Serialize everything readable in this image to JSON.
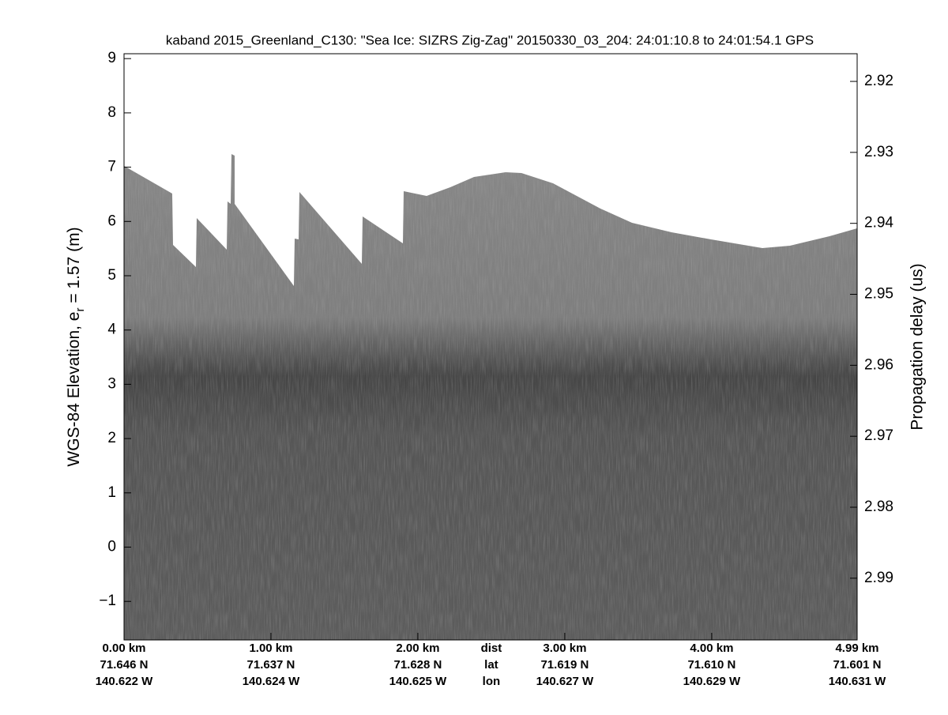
{
  "chart_data": {
    "type": "echogram",
    "title": "kaband 2015_Greenland_C130: \"Sea Ice: SIZRS Zig-Zag\"  20150330_03_204: 24:01:10.8 to 24:01:54.1 GPS",
    "ylabel": [
      "WGS-84 Elevation, e",
      "r",
      " = 1.57 (m)"
    ],
    "y2label": "Propagation delay (us)",
    "ylim": [
      -1.71,
      9.09
    ],
    "yticks": [
      {
        "value": -1,
        "label": "−1"
      },
      0,
      1,
      2,
      3,
      4,
      5,
      6,
      7,
      8,
      9
    ],
    "y2lim": [
      2.9987,
      2.9161
    ],
    "y2ticks": [
      2.92,
      2.93,
      2.94,
      2.95,
      2.96,
      2.97,
      2.98,
      2.99
    ],
    "xlim": [
      0,
      4.99
    ],
    "xticks": [
      {
        "value": 0,
        "label": "0.00 km"
      },
      {
        "value": 1,
        "label": "1.00 km"
      },
      {
        "value": 2,
        "label": "2.00 km"
      },
      {
        "value": 3,
        "label": "3.00 km"
      },
      {
        "value": 4,
        "label": "4.00 km"
      },
      {
        "value": 4.99,
        "label": "4.99 km"
      }
    ],
    "xtick_lat": [
      "71.646 N",
      "71.637 N",
      "71.628 N",
      "71.619 N",
      "71.610 N",
      "71.601 N"
    ],
    "xtick_lon": [
      "140.622 W",
      "140.624 W",
      "140.625 W",
      "140.627 W",
      "140.629 W",
      "140.631 W"
    ],
    "row_labels": [
      "dist",
      "lat",
      "lon"
    ],
    "colormap": "gray"
  }
}
